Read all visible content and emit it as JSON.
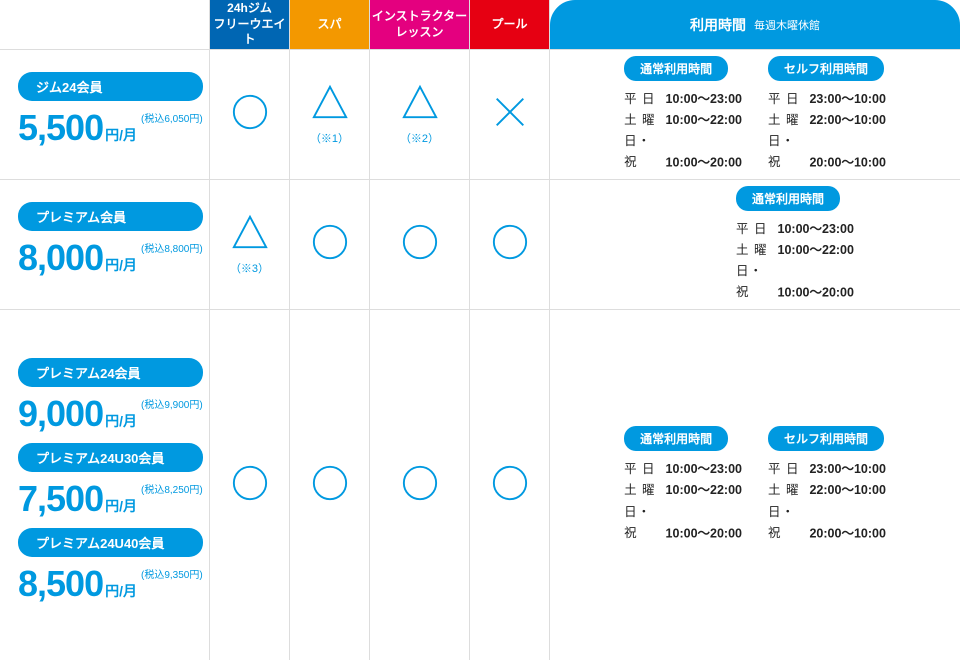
{
  "colors": {
    "brand": "#0099e0",
    "col1": "#0066b3",
    "col2": "#f39800",
    "col3": "#e4007f",
    "col4": "#e60012",
    "border": "#dddddd",
    "text": "#222222",
    "white": "#ffffff"
  },
  "header": {
    "facilities": [
      {
        "label": "24hジム\nフリーウエイト"
      },
      {
        "label": "スパ"
      },
      {
        "label": "インストラクター\nレッスン"
      },
      {
        "label": "プール"
      }
    ],
    "time_title": "利用時間",
    "time_sub": "毎週木曜休館"
  },
  "symbols": {
    "circle": "circle",
    "triangle": "triangle",
    "cross": "cross"
  },
  "notes": {
    "n1": "（※1）",
    "n2": "（※2）",
    "n3": "（※3）"
  },
  "rows": [
    {
      "plans": [
        {
          "name": "ジム24会員",
          "price": "5,500",
          "tax": "(税込6,050円)",
          "unit": "円/月"
        }
      ],
      "marks": [
        "circle",
        "triangle",
        "triangle",
        "cross"
      ],
      "mark_notes": [
        "",
        "n1",
        "n2",
        ""
      ],
      "hours": {
        "cols": [
          {
            "title": "通常利用時間",
            "lines": [
              [
                "平 日",
                "10:00〜23:00"
              ],
              [
                "土 曜",
                "10:00〜22:00"
              ],
              [
                "日・祝",
                "10:00〜20:00"
              ]
            ]
          },
          {
            "title": "セルフ利用時間",
            "lines": [
              [
                "平 日",
                "23:00〜10:00"
              ],
              [
                "土 曜",
                "22:00〜10:00"
              ],
              [
                "日・祝",
                "20:00〜10:00"
              ]
            ]
          }
        ]
      }
    },
    {
      "plans": [
        {
          "name": "プレミアム会員",
          "price": "8,000",
          "tax": "(税込8,800円)",
          "unit": "円/月"
        }
      ],
      "marks": [
        "triangle",
        "circle",
        "circle",
        "circle"
      ],
      "mark_notes": [
        "n3",
        "",
        "",
        ""
      ],
      "hours": {
        "cols": [
          {
            "title": "通常利用時間",
            "lines": [
              [
                "平 日",
                "10:00〜23:00"
              ],
              [
                "土 曜",
                "10:00〜22:00"
              ],
              [
                "日・祝",
                "10:00〜20:00"
              ]
            ]
          }
        ]
      }
    },
    {
      "plans": [
        {
          "name": "プレミアム24会員",
          "price": "9,000",
          "tax": "(税込9,900円)",
          "unit": "円/月"
        },
        {
          "name": "プレミアム24U30会員",
          "price": "7,500",
          "tax": "(税込8,250円)",
          "unit": "円/月"
        },
        {
          "name": "プレミアム24U40会員",
          "price": "8,500",
          "tax": "(税込9,350円)",
          "unit": "円/月"
        }
      ],
      "marks": [
        "circle",
        "circle",
        "circle",
        "circle"
      ],
      "mark_notes": [
        "",
        "",
        "",
        ""
      ],
      "hours": {
        "cols": [
          {
            "title": "通常利用時間",
            "lines": [
              [
                "平 日",
                "10:00〜23:00"
              ],
              [
                "土 曜",
                "10:00〜22:00"
              ],
              [
                "日・祝",
                "10:00〜20:00"
              ]
            ]
          },
          {
            "title": "セルフ利用時間",
            "lines": [
              [
                "平 日",
                "23:00〜10:00"
              ],
              [
                "土 曜",
                "22:00〜10:00"
              ],
              [
                "日・祝",
                "20:00〜10:00"
              ]
            ]
          }
        ]
      }
    }
  ]
}
